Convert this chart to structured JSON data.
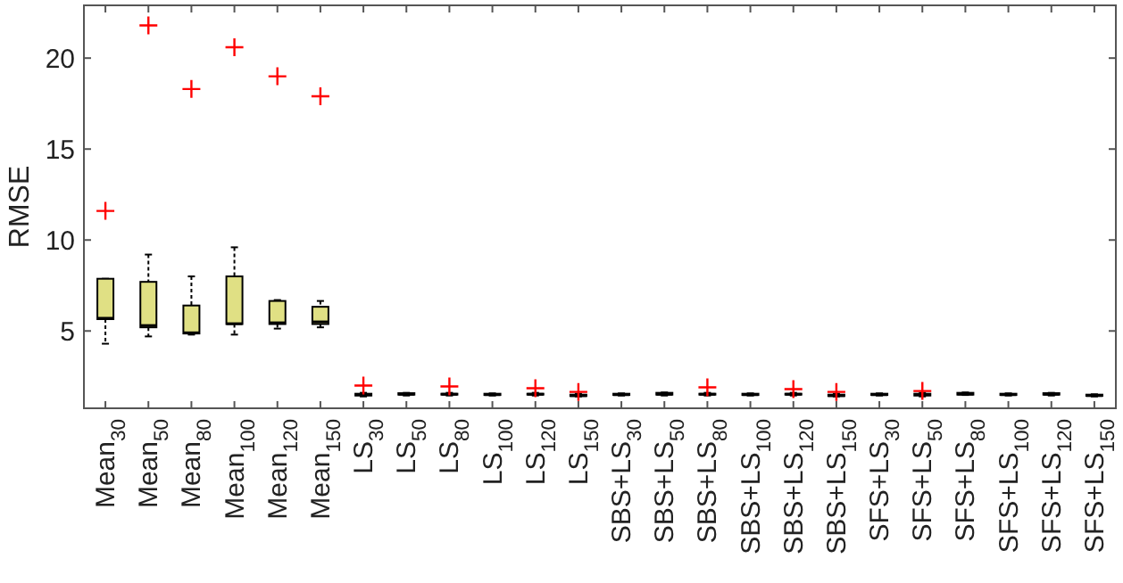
{
  "chart_data": {
    "type": "box",
    "ylabel": "RMSE",
    "categories": [
      "Mean$_{30}$",
      "Mean$_{50}$",
      "Mean$_{80}$",
      "Mean$_{100}$",
      "Mean$_{120}$",
      "Mean$_{150}$",
      "LS$_{30}$",
      "LS$_{50}$",
      "LS$_{80}$",
      "LS$_{100}$",
      "LS$_{120}$",
      "LS$_{150}$",
      "SBS+LS$_{30}$",
      "SBS+LS$_{50}$",
      "SBS+LS$_{80}$",
      "SBS+LS$_{100}$",
      "SBS+LS$_{120}$",
      "SBS+LS$_{150}$",
      "SFS+LS$_{30}$",
      "SFS+LS$_{50}$",
      "SFS+LS$_{80}$",
      "SFS+LS$_{100}$",
      "SFS+LS$_{120}$",
      "SFS+LS$_{150}$"
    ],
    "color": "#e0e084",
    "ylim": [
      0.75,
      22.9
    ],
    "yticks": [
      5,
      10,
      15,
      20
    ],
    "grid": false,
    "marker": "cross",
    "boxes": [
      {
        "low": 4.3,
        "q1": 5.65,
        "median": 5.7,
        "q3": 7.87,
        "high": 7.87,
        "outliers": [
          11.6
        ]
      },
      {
        "low": 4.7,
        "q1": 5.2,
        "median": 5.3,
        "q3": 7.7,
        "high": 9.2,
        "outliers": [
          21.8
        ]
      },
      {
        "low": 4.8,
        "q1": 4.86,
        "median": 4.9,
        "q3": 6.4,
        "high": 8.0,
        "outliers": [
          18.3
        ]
      },
      {
        "low": 4.8,
        "q1": 5.38,
        "median": 5.4,
        "q3": 8.0,
        "high": 9.6,
        "outliers": [
          20.6
        ]
      },
      {
        "low": 5.13,
        "q1": 5.38,
        "median": 5.45,
        "q3": 6.65,
        "high": 6.7,
        "outliers": [
          19.0
        ]
      },
      {
        "low": 5.2,
        "q1": 5.38,
        "median": 5.5,
        "q3": 6.33,
        "high": 6.65,
        "outliers": [
          17.9
        ]
      },
      {
        "low": 1.4,
        "q1": 1.45,
        "median": 1.5,
        "q3": 1.55,
        "high": 1.6,
        "outliers": [
          2.0
        ]
      },
      {
        "low": 1.45,
        "q1": 1.5,
        "median": 1.52,
        "q3": 1.58,
        "high": 1.6
      },
      {
        "low": 1.45,
        "q1": 1.5,
        "median": 1.52,
        "q3": 1.55,
        "high": 1.6,
        "outliers": [
          1.95
        ]
      },
      {
        "low": 1.45,
        "q1": 1.48,
        "median": 1.5,
        "q3": 1.55,
        "high": 1.57
      },
      {
        "low": 1.45,
        "q1": 1.5,
        "median": 1.52,
        "q3": 1.55,
        "high": 1.6,
        "outliers": [
          1.85
        ]
      },
      {
        "low": 1.4,
        "q1": 1.42,
        "median": 1.45,
        "q3": 1.5,
        "high": 1.55,
        "outliers": [
          1.65
        ]
      },
      {
        "low": 1.45,
        "q1": 1.48,
        "median": 1.5,
        "q3": 1.55,
        "high": 1.57
      },
      {
        "low": 1.45,
        "q1": 1.5,
        "median": 1.52,
        "q3": 1.6,
        "high": 1.62
      },
      {
        "low": 1.45,
        "q1": 1.5,
        "median": 1.52,
        "q3": 1.55,
        "high": 1.6,
        "outliers": [
          1.9
        ]
      },
      {
        "low": 1.45,
        "q1": 1.48,
        "median": 1.5,
        "q3": 1.55,
        "high": 1.57
      },
      {
        "low": 1.45,
        "q1": 1.5,
        "median": 1.52,
        "q3": 1.55,
        "high": 1.6,
        "outliers": [
          1.8
        ]
      },
      {
        "low": 1.4,
        "q1": 1.42,
        "median": 1.45,
        "q3": 1.5,
        "high": 1.55,
        "outliers": [
          1.65
        ]
      },
      {
        "low": 1.45,
        "q1": 1.48,
        "median": 1.5,
        "q3": 1.55,
        "high": 1.57
      },
      {
        "low": 1.4,
        "q1": 1.45,
        "median": 1.5,
        "q3": 1.55,
        "high": 1.6,
        "outliers": [
          1.7
        ]
      },
      {
        "low": 1.48,
        "q1": 1.5,
        "median": 1.53,
        "q3": 1.6,
        "high": 1.62
      },
      {
        "low": 1.45,
        "q1": 1.48,
        "median": 1.5,
        "q3": 1.55,
        "high": 1.57
      },
      {
        "low": 1.45,
        "q1": 1.5,
        "median": 1.52,
        "q3": 1.58,
        "high": 1.6
      },
      {
        "low": 1.4,
        "q1": 1.43,
        "median": 1.45,
        "q3": 1.5,
        "high": 1.52
      }
    ]
  }
}
